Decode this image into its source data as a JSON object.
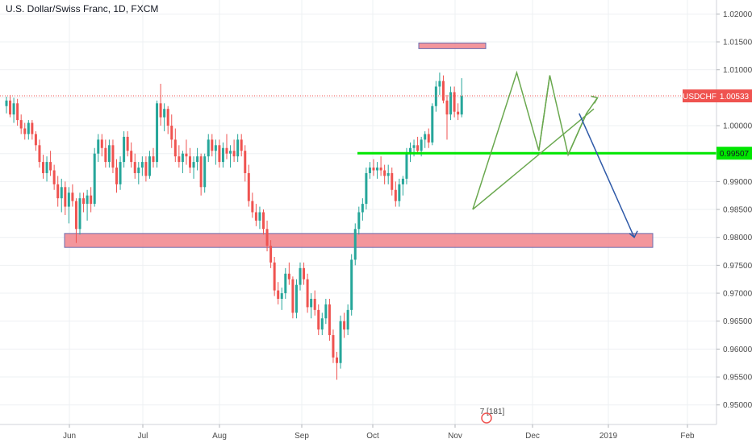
{
  "header": {
    "title": "U.S. Dollar/Swiss Franc, 1D, FXCM"
  },
  "colors": {
    "up": "#26a69a",
    "down": "#ef5350",
    "zone_fill": "#f28b92",
    "zone_border": "#5b5fa8",
    "support_line": "#00e600",
    "projection_arrow": "#2f5aa8",
    "pattern_lines": "#6aa84f",
    "grid": "#eef0f3",
    "price_line": "#ef5350"
  },
  "chart_data": {
    "type": "candlestick",
    "title": "U.S. Dollar/Swiss Franc, 1D, FXCM",
    "x_tick_labels": [
      "Jun",
      "Jul",
      "Aug",
      "Sep",
      "Oct",
      "Nov",
      "Dec",
      "2019",
      "Feb"
    ],
    "y_tick_labels": [
      "1.02000",
      "1.01500",
      "1.01000",
      "1.00500",
      "1.00000",
      "0.99500",
      "0.99000",
      "0.98500",
      "0.98000",
      "0.97500",
      "0.97000",
      "0.96500",
      "0.96000",
      "0.95500",
      "0.95000"
    ],
    "ylim": [
      0.9465,
      1.0225
    ],
    "grid": true,
    "current_price": {
      "symbol": "USDCHF",
      "value": "1.00533",
      "numeric": 1.00533
    },
    "support_level": {
      "label": "0.99507",
      "value": 0.99507
    },
    "zones": [
      {
        "name": "demand-zone",
        "y_low": 0.9782,
        "y_high": 0.9807,
        "x_start": 0,
        "x_end": 204
      },
      {
        "name": "target-zone",
        "y_low": 1.0142,
        "y_high": 1.0148,
        "x_start": 129,
        "x_end": 149
      }
    ],
    "projection_arrow": {
      "from": [
        156,
        1.0022
      ],
      "to": [
        171,
        0.98
      ]
    },
    "pattern_points": [
      [
        127,
        0.985
      ],
      [
        139,
        1.0095
      ],
      [
        145,
        0.9955
      ],
      [
        148,
        1.009
      ],
      [
        153,
        0.9948
      ],
      [
        158,
        1.0022
      ],
      [
        161,
        1.005
      ]
    ],
    "pattern_lines": [
      [
        [
          127,
          0.985
        ],
        [
          160,
          1.003
        ]
      ],
      [
        [
          148,
          1.009
        ],
        [
          145,
          0.9955
        ]
      ],
      [
        [
          158,
          1.0022
        ],
        [
          153,
          0.9948
        ]
      ]
    ],
    "bottom_label": "7 [181]",
    "candles": [
      [
        1.0035,
        1.0052,
        1.0022,
        1.0045
      ],
      [
        1.0045,
        1.0055,
        1.0015,
        1.002
      ],
      [
        1.002,
        1.005,
        1.0005,
        1.004
      ],
      [
        1.004,
        1.0048,
        1.0,
        1.001
      ],
      [
        1.001,
        1.002,
        0.9985,
        0.9995
      ],
      [
        0.9995,
        1.0005,
        0.9975,
        0.9985
      ],
      [
        0.9985,
        1.001,
        0.9975,
        1.0005
      ],
      [
        1.0005,
        1.001,
        0.9975,
        0.9985
      ],
      [
        0.9985,
        0.999,
        0.9955,
        0.9965
      ],
      [
        0.9965,
        0.9975,
        0.9925,
        0.9935
      ],
      [
        0.9935,
        0.9948,
        0.9905,
        0.9915
      ],
      [
        0.9915,
        0.9945,
        0.99,
        0.9935
      ],
      [
        0.9935,
        0.9955,
        0.991,
        0.992
      ],
      [
        0.992,
        0.993,
        0.9885,
        0.9895
      ],
      [
        0.9895,
        0.991,
        0.9855,
        0.987
      ],
      [
        0.987,
        0.9905,
        0.9845,
        0.989
      ],
      [
        0.989,
        0.99,
        0.984,
        0.9855
      ],
      [
        0.9855,
        0.989,
        0.9825,
        0.988
      ],
      [
        0.988,
        0.9895,
        0.9855,
        0.9865
      ],
      [
        0.9865,
        0.987,
        0.979,
        0.9815
      ],
      [
        0.9815,
        0.988,
        0.9805,
        0.987
      ],
      [
        0.987,
        0.988,
        0.9845,
        0.986
      ],
      [
        0.986,
        0.9885,
        0.983,
        0.9875
      ],
      [
        0.9875,
        0.989,
        0.9845,
        0.986
      ],
      [
        0.986,
        0.996,
        0.9855,
        0.995
      ],
      [
        0.995,
        0.9985,
        0.9935,
        0.9975
      ],
      [
        0.9975,
        0.9985,
        0.9945,
        0.996
      ],
      [
        0.996,
        0.9975,
        0.9925,
        0.9935
      ],
      [
        0.9935,
        0.9975,
        0.9925,
        0.9965
      ],
      [
        0.9965,
        0.9975,
        0.9915,
        0.9925
      ],
      [
        0.9925,
        0.994,
        0.988,
        0.9895
      ],
      [
        0.9895,
        0.9945,
        0.9885,
        0.9935
      ],
      [
        0.9935,
        0.999,
        0.9925,
        0.998
      ],
      [
        0.998,
        0.999,
        0.9945,
        0.9955
      ],
      [
        0.9955,
        0.997,
        0.9925,
        0.9935
      ],
      [
        0.9935,
        0.995,
        0.9905,
        0.9915
      ],
      [
        0.9915,
        0.9935,
        0.9895,
        0.9925
      ],
      [
        0.9925,
        0.9945,
        0.991,
        0.9935
      ],
      [
        0.9935,
        0.9945,
        0.99,
        0.991
      ],
      [
        0.991,
        0.9955,
        0.9905,
        0.9945
      ],
      [
        0.9945,
        0.996,
        0.9925,
        0.9935
      ],
      [
        0.9935,
        1.0045,
        0.9925,
        1.004
      ],
      [
        1.004,
        1.0075,
        1.0,
        1.0015
      ],
      [
        1.0015,
        1.004,
        0.999,
        1.003
      ],
      [
        1.003,
        1.0035,
        0.9985,
        1.0
      ],
      [
        1.0,
        1.002,
        0.996,
        0.9975
      ],
      [
        0.9975,
        0.9995,
        0.9935,
        0.9945
      ],
      [
        0.9945,
        0.9965,
        0.9925,
        0.9935
      ],
      [
        0.9935,
        0.9955,
        0.9915,
        0.995
      ],
      [
        0.995,
        0.9975,
        0.993,
        0.9945
      ],
      [
        0.9945,
        0.996,
        0.9915,
        0.9925
      ],
      [
        0.9925,
        0.9945,
        0.9905,
        0.9935
      ],
      [
        0.9935,
        0.996,
        0.992,
        0.9945
      ],
      [
        0.9945,
        0.995,
        0.9875,
        0.989
      ],
      [
        0.989,
        0.995,
        0.988,
        0.9945
      ],
      [
        0.9945,
        0.9985,
        0.9935,
        0.9975
      ],
      [
        0.9975,
        0.9985,
        0.9945,
        0.9955
      ],
      [
        0.9955,
        0.9975,
        0.993,
        0.9965
      ],
      [
        0.9965,
        0.9975,
        0.9925,
        0.9935
      ],
      [
        0.9935,
        0.997,
        0.9925,
        0.996
      ],
      [
        0.996,
        0.9985,
        0.994,
        0.995
      ],
      [
        0.995,
        0.9965,
        0.9925,
        0.9955
      ],
      [
        0.9955,
        0.9975,
        0.9935,
        0.9945
      ],
      [
        0.9945,
        0.9985,
        0.9935,
        0.9975
      ],
      [
        0.9975,
        0.9985,
        0.9945,
        0.9955
      ],
      [
        0.9955,
        0.9965,
        0.99,
        0.9915
      ],
      [
        0.9915,
        0.993,
        0.9855,
        0.9865
      ],
      [
        0.9865,
        0.988,
        0.9835,
        0.9845
      ],
      [
        0.9845,
        0.986,
        0.982,
        0.983
      ],
      [
        0.983,
        0.9855,
        0.9815,
        0.9845
      ],
      [
        0.9845,
        0.985,
        0.9805,
        0.9815
      ],
      [
        0.9815,
        0.983,
        0.9775,
        0.9785
      ],
      [
        0.9785,
        0.9795,
        0.9745,
        0.9755
      ],
      [
        0.9755,
        0.9765,
        0.9695,
        0.9705
      ],
      [
        0.9705,
        0.972,
        0.968,
        0.969
      ],
      [
        0.969,
        0.971,
        0.967,
        0.97
      ],
      [
        0.97,
        0.9745,
        0.969,
        0.9735
      ],
      [
        0.9735,
        0.9755,
        0.9715,
        0.9725
      ],
      [
        0.9725,
        0.973,
        0.9655,
        0.9665
      ],
      [
        0.9665,
        0.9725,
        0.9655,
        0.9715
      ],
      [
        0.9715,
        0.9755,
        0.9705,
        0.9745
      ],
      [
        0.9745,
        0.9755,
        0.9715,
        0.9725
      ],
      [
        0.9725,
        0.9735,
        0.9665,
        0.9675
      ],
      [
        0.9675,
        0.97,
        0.9655,
        0.969
      ],
      [
        0.969,
        0.9705,
        0.966,
        0.967
      ],
      [
        0.967,
        0.968,
        0.9625,
        0.9635
      ],
      [
        0.9635,
        0.9665,
        0.9625,
        0.9655
      ],
      [
        0.9655,
        0.969,
        0.9645,
        0.968
      ],
      [
        0.968,
        0.969,
        0.9615,
        0.9625
      ],
      [
        0.9625,
        0.9635,
        0.9575,
        0.9585
      ],
      [
        0.9585,
        0.9595,
        0.9545,
        0.9575
      ],
      [
        0.9575,
        0.966,
        0.9565,
        0.965
      ],
      [
        0.965,
        0.9665,
        0.962,
        0.9635
      ],
      [
        0.9635,
        0.968,
        0.9625,
        0.967
      ],
      [
        0.967,
        0.977,
        0.966,
        0.976
      ],
      [
        0.976,
        0.9825,
        0.975,
        0.9815
      ],
      [
        0.9815,
        0.9855,
        0.9805,
        0.9845
      ],
      [
        0.9845,
        0.987,
        0.983,
        0.986
      ],
      [
        0.986,
        0.9925,
        0.985,
        0.9915
      ],
      [
        0.9915,
        0.9935,
        0.9905,
        0.9925
      ],
      [
        0.9925,
        0.994,
        0.991,
        0.992
      ],
      [
        0.992,
        0.9935,
        0.9905,
        0.9925
      ],
      [
        0.9925,
        0.9945,
        0.991,
        0.992
      ],
      [
        0.992,
        0.993,
        0.9895,
        0.991
      ],
      [
        0.991,
        0.993,
        0.9895,
        0.9915
      ],
      [
        0.9915,
        0.9925,
        0.9875,
        0.9885
      ],
      [
        0.9885,
        0.99,
        0.9855,
        0.9865
      ],
      [
        0.9865,
        0.9905,
        0.9855,
        0.9895
      ],
      [
        0.9895,
        0.991,
        0.9875,
        0.9905
      ],
      [
        0.9905,
        0.996,
        0.9895,
        0.995
      ],
      [
        0.995,
        0.997,
        0.9935,
        0.996
      ],
      [
        0.996,
        0.9975,
        0.9945,
        0.9965
      ],
      [
        0.9965,
        0.998,
        0.995,
        0.9955
      ],
      [
        0.9955,
        0.998,
        0.9945,
        0.9975
      ],
      [
        0.9975,
        0.999,
        0.996,
        0.9985
      ],
      [
        0.9985,
        0.9995,
        0.996,
        0.997
      ],
      [
        0.997,
        1.004,
        0.9965,
        1.0035
      ],
      [
        1.0035,
        1.008,
        1.0025,
        1.007
      ],
      [
        1.007,
        1.0095,
        1.0055,
        1.008
      ],
      [
        1.008,
        1.009,
        1.004,
        1.0045
      ],
      [
        1.0045,
        1.0055,
        0.9975,
        1.002
      ],
      [
        1.002,
        1.007,
        1.001,
        1.006
      ],
      [
        1.006,
        1.007,
        1.0015,
        1.0025
      ],
      [
        1.0025,
        1.004,
        1.001,
        1.002
      ],
      [
        1.002,
        1.0085,
        1.0015,
        1.0053
      ]
    ]
  }
}
